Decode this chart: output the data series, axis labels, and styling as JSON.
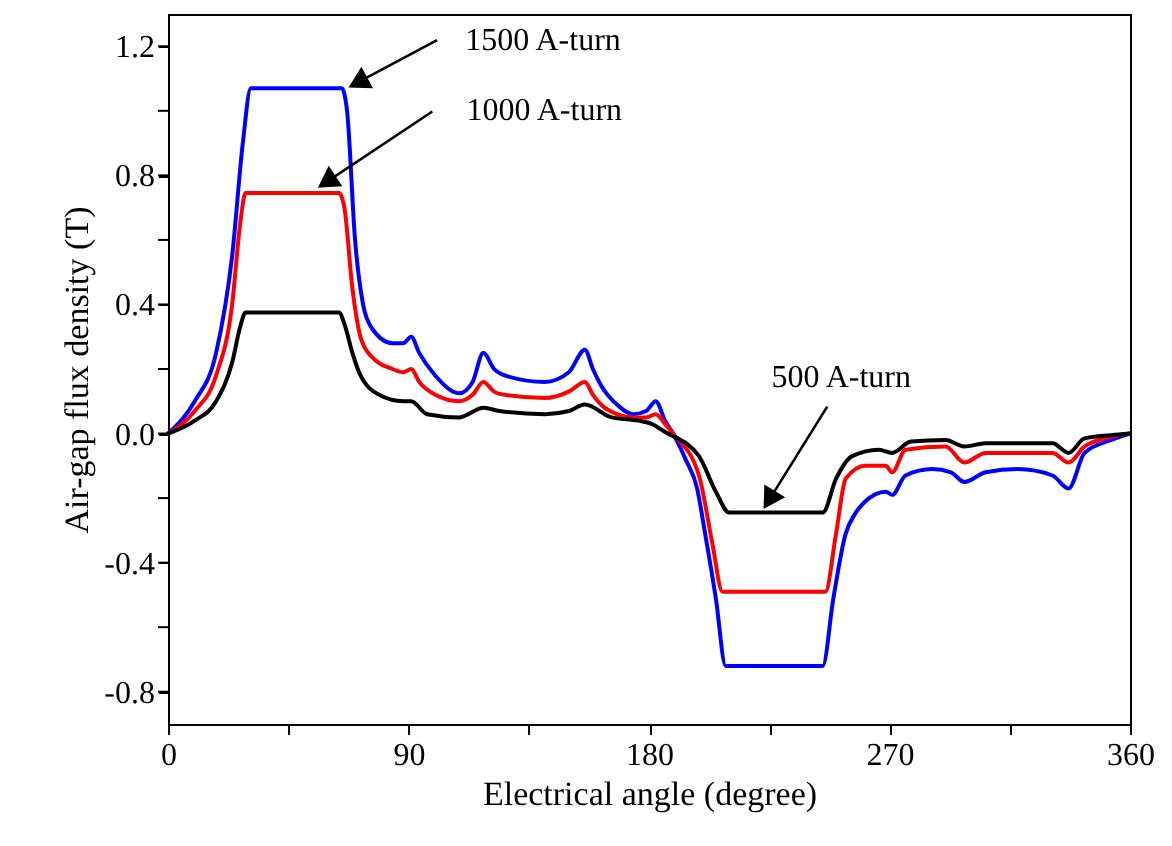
{
  "chart_data": {
    "type": "line",
    "xlabel": "Electrical angle (degree)",
    "ylabel": "Air-gap flux density (T)",
    "xlim": [
      0,
      360
    ],
    "ylim": [
      -0.9,
      1.3
    ],
    "xticks": [
      0,
      {
        "value": 45,
        "label": null
      },
      90,
      {
        "value": 135,
        "label": null
      },
      180,
      {
        "value": 225,
        "label": null
      },
      270,
      {
        "value": 315,
        "label": null
      },
      360
    ],
    "yticks": [
      {
        "value": -0.8,
        "label": "-0.8"
      },
      {
        "value": -0.6,
        "label": null
      },
      {
        "value": -0.4,
        "label": "-0.4"
      },
      {
        "value": -0.2,
        "label": null
      },
      {
        "value": 0,
        "label": "0.0"
      },
      {
        "value": 0.2,
        "label": null
      },
      0.4,
      {
        "value": 0.6,
        "label": null
      },
      0.8,
      {
        "value": 1.0,
        "label": null
      },
      1.2
    ],
    "grid": false,
    "marker": "none",
    "line_style": "solid",
    "annotations": [
      {
        "text": "1500 A-turn",
        "x": 67,
        "y": 1.07
      },
      {
        "text": "1000 A-turn",
        "x": 54,
        "y": 0.75
      },
      {
        "text": "500 A-turn",
        "x": 222,
        "y": -0.245
      }
    ],
    "series": [
      {
        "color": "#0000ff",
        "x": [
          0,
          10,
          18,
          24,
          28,
          31,
          65,
          67,
          70,
          73,
          76,
          84,
          88,
          91,
          94,
          100,
          109,
          114,
          118,
          122,
          126,
          141,
          150,
          156,
          159,
          162,
          168,
          174,
          179,
          182.5,
          186,
          189,
          193.7,
          198,
          201,
          205,
          208.7,
          245,
          249,
          253.6,
          257,
          261,
          268.6,
          271,
          276,
          286,
          293,
          298,
          306,
          318,
          331,
          337,
          343,
          353,
          360
        ],
        "values": [
          0,
          0.1,
          0.25,
          0.55,
          0.9,
          1.07,
          1.07,
          1.0,
          0.6,
          0.4,
          0.33,
          0.28,
          0.28,
          0.3,
          0.25,
          0.18,
          0.125,
          0.16,
          0.25,
          0.2,
          0.18,
          0.16,
          0.19,
          0.26,
          0.2,
          0.15,
          0.09,
          0.06,
          0.07,
          0.1,
          0.04,
          0,
          -0.08,
          -0.17,
          -0.31,
          -0.51,
          -0.72,
          -0.72,
          -0.51,
          -0.31,
          -0.25,
          -0.21,
          -0.18,
          -0.19,
          -0.13,
          -0.11,
          -0.12,
          -0.15,
          -0.12,
          -0.11,
          -0.13,
          -0.17,
          -0.06,
          -0.02,
          0
        ]
      },
      {
        "color": "#ff0000",
        "x": [
          0,
          10,
          18,
          24,
          27,
          29,
          64,
          66,
          69,
          72,
          76,
          84,
          88,
          91,
          94,
          100,
          109,
          114,
          118,
          122,
          126,
          141,
          150,
          156,
          159,
          162,
          168,
          174,
          179,
          182.5,
          186,
          189,
          198.7,
          203.7,
          207.5,
          246,
          250,
          253.6,
          261,
          268.6,
          271,
          276,
          291,
          298,
          306,
          331,
          337,
          343,
          353,
          360
        ],
        "values": [
          0,
          0.07,
          0.18,
          0.4,
          0.65,
          0.745,
          0.745,
          0.7,
          0.45,
          0.3,
          0.24,
          0.2,
          0.19,
          0.2,
          0.16,
          0.12,
          0.1,
          0.12,
          0.16,
          0.13,
          0.12,
          0.11,
          0.13,
          0.16,
          0.12,
          0.09,
          0.06,
          0.05,
          0.05,
          0.06,
          0.03,
          0,
          -0.13,
          -0.34,
          -0.49,
          -0.49,
          -0.31,
          -0.14,
          -0.1,
          -0.1,
          -0.12,
          -0.05,
          -0.04,
          -0.09,
          -0.06,
          -0.06,
          -0.09,
          -0.04,
          -0.01,
          0
        ]
      },
      {
        "color": "#000000",
        "x": [
          0,
          10,
          18,
          24,
          27,
          29,
          64,
          66,
          69,
          71.5,
          79,
          88,
          91,
          97,
          109,
          118,
          124,
          141,
          150,
          156,
          166,
          176,
          181,
          186,
          198.7,
          205,
          210,
          245,
          250,
          256,
          266,
          271,
          278,
          291,
          298,
          306,
          331,
          337,
          343,
          353,
          360
        ],
        "values": [
          0,
          0.04,
          0.1,
          0.22,
          0.33,
          0.375,
          0.375,
          0.34,
          0.25,
          0.19,
          0.12,
          0.1,
          0.1,
          0.06,
          0.05,
          0.08,
          0.07,
          0.06,
          0.07,
          0.09,
          0.05,
          0.04,
          0.03,
          0.005,
          -0.07,
          -0.18,
          -0.245,
          -0.245,
          -0.14,
          -0.07,
          -0.05,
          -0.06,
          -0.025,
          -0.02,
          -0.04,
          -0.03,
          -0.03,
          -0.06,
          -0.015,
          -0.005,
          0
        ]
      }
    ]
  }
}
